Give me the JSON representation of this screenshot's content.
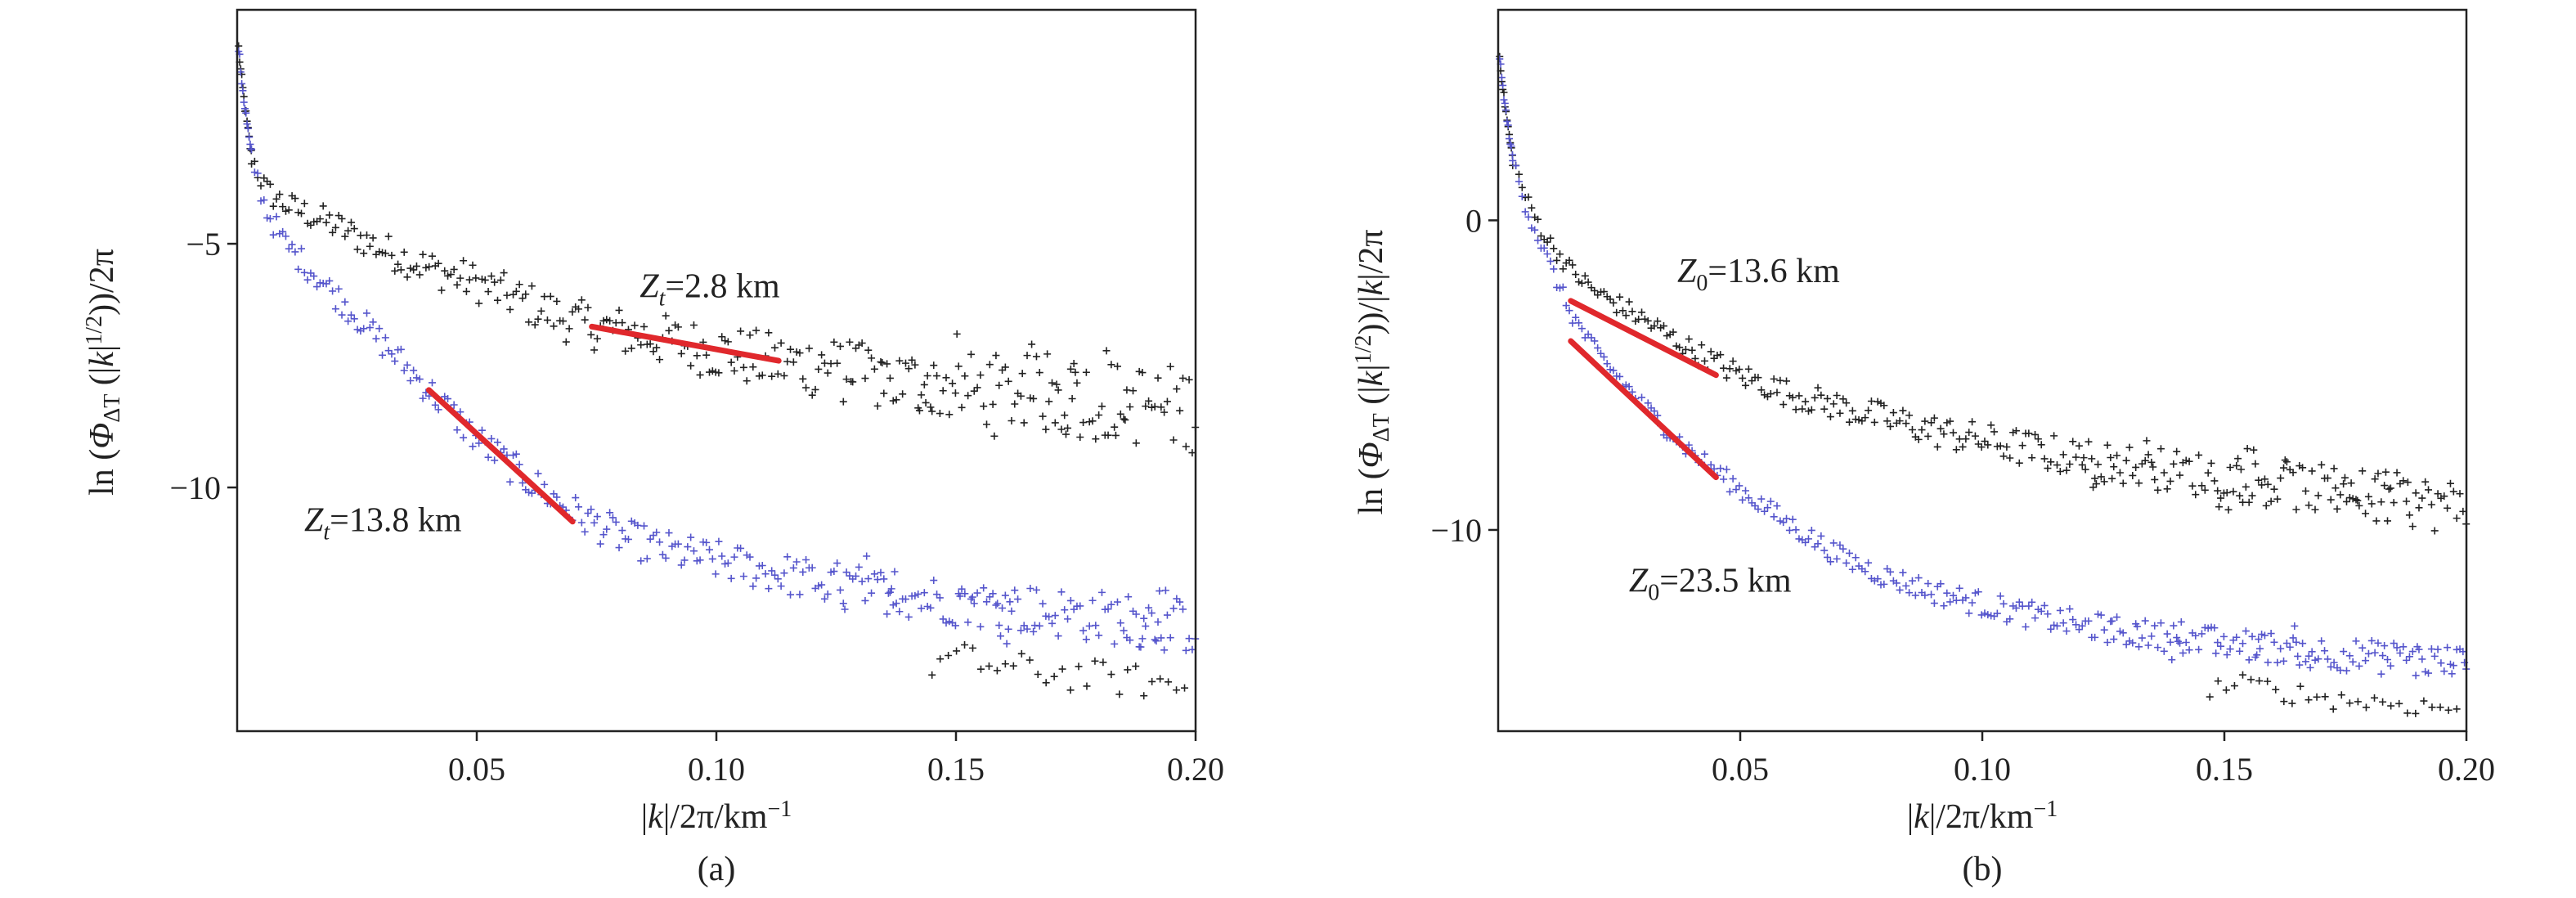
{
  "chart_data": [
    {
      "panel": "(a)",
      "type": "scatter",
      "xlabel": "|k|/2π/km⁻¹",
      "ylabel": "ln (Φ_ΔT (|k|^(1/2)))/2π",
      "xlim": [
        0,
        0.2
      ],
      "ylim": [
        -15,
        -0.2
      ],
      "xticks": [
        0.05,
        0.1,
        0.15,
        0.2
      ],
      "xtick_labels": [
        "0.05",
        "0.10",
        "0.15",
        "0.20"
      ],
      "yticks": [
        -5,
        -10
      ],
      "ytick_labels": [
        "−5",
        "−10"
      ],
      "series": [
        {
          "name": "upper (black)",
          "color": "#222222",
          "start_y": -0.5,
          "points": [
            [
              0.003,
              -3.2
            ],
            [
              0.006,
              -3.9
            ],
            [
              0.01,
              -4.2
            ],
            [
              0.02,
              -4.6
            ],
            [
              0.03,
              -5.1
            ],
            [
              0.04,
              -5.5
            ],
            [
              0.05,
              -5.8
            ],
            [
              0.06,
              -6.2
            ],
            [
              0.07,
              -6.6
            ],
            [
              0.08,
              -6.8
            ],
            [
              0.09,
              -7.0
            ],
            [
              0.1,
              -7.2
            ],
            [
              0.11,
              -7.4
            ],
            [
              0.12,
              -7.5
            ],
            [
              0.13,
              -7.7
            ],
            [
              0.14,
              -7.85
            ],
            [
              0.15,
              -7.95
            ],
            [
              0.16,
              -8.05
            ],
            [
              0.17,
              -8.1
            ],
            [
              0.18,
              -8.2
            ],
            [
              0.19,
              -8.3
            ],
            [
              0.2,
              -8.4
            ]
          ]
        },
        {
          "name": "lower (blue)",
          "color": "#5555cc",
          "start_y": -0.5,
          "points": [
            [
              0.003,
              -3.2
            ],
            [
              0.006,
              -4.3
            ],
            [
              0.01,
              -5.0
            ],
            [
              0.02,
              -6.0
            ],
            [
              0.03,
              -7.0
            ],
            [
              0.04,
              -8.0
            ],
            [
              0.05,
              -9.0
            ],
            [
              0.06,
              -9.8
            ],
            [
              0.07,
              -10.5
            ],
            [
              0.08,
              -11.0
            ],
            [
              0.09,
              -11.3
            ],
            [
              0.1,
              -11.5
            ],
            [
              0.11,
              -11.7
            ],
            [
              0.12,
              -11.9
            ],
            [
              0.13,
              -12.05
            ],
            [
              0.14,
              -12.2
            ],
            [
              0.15,
              -12.35
            ],
            [
              0.16,
              -12.45
            ],
            [
              0.17,
              -12.55
            ],
            [
              0.18,
              -12.65
            ],
            [
              0.19,
              -12.75
            ],
            [
              0.2,
              -12.85
            ]
          ]
        },
        {
          "name": "outlier segment",
          "color": "#222222",
          "points": [
            [
              0.145,
              -13.6
            ],
            [
              0.15,
              -13.5
            ],
            [
              0.16,
              -13.7
            ],
            [
              0.17,
              -13.8
            ],
            [
              0.18,
              -13.9
            ],
            [
              0.19,
              -14.0
            ],
            [
              0.199,
              -14.1
            ]
          ]
        }
      ],
      "fits": [
        {
          "label": "Z_t=13.8 km",
          "x": [
            0.04,
            0.07
          ],
          "y": [
            -8.0,
            -10.7
          ],
          "color": "#e0282c"
        },
        {
          "label": "Z_t=2.8 km",
          "x": [
            0.074,
            0.113
          ],
          "y": [
            -6.7,
            -7.4
          ],
          "color": "#e0282c"
        }
      ],
      "annotations": [
        {
          "main": "Z",
          "sub": "t",
          "rest": "=2.8 km",
          "x": 0.084,
          "y": -6.1
        },
        {
          "main": "Z",
          "sub": "t",
          "rest": "=13.8 km",
          "x": 0.014,
          "y": -10.9
        }
      ]
    },
    {
      "panel": "(b)",
      "type": "scatter",
      "xlabel": "|k|/2π/km⁻¹",
      "ylabel": "ln (Φ_ΔT (|k|^(1/2)))/|k|/2π",
      "xlim": [
        0,
        0.2
      ],
      "ylim": [
        -16.5,
        6.8
      ],
      "xticks": [
        0.05,
        0.1,
        0.15,
        0.2
      ],
      "xtick_labels": [
        "0.05",
        "0.10",
        "0.15",
        "0.20"
      ],
      "yticks": [
        0,
        -10
      ],
      "ytick_labels": [
        "0",
        "−10"
      ],
      "series": [
        {
          "name": "upper (black)",
          "color": "#222222",
          "start_y": 6.0,
          "points": [
            [
              0.003,
              2.0
            ],
            [
              0.006,
              0.6
            ],
            [
              0.01,
              -0.6
            ],
            [
              0.015,
              -1.6
            ],
            [
              0.02,
              -2.3
            ],
            [
              0.03,
              -3.2
            ],
            [
              0.04,
              -4.2
            ],
            [
              0.05,
              -5.0
            ],
            [
              0.06,
              -5.6
            ],
            [
              0.07,
              -6.0
            ],
            [
              0.08,
              -6.4
            ],
            [
              0.09,
              -6.8
            ],
            [
              0.1,
              -7.1
            ],
            [
              0.11,
              -7.4
            ],
            [
              0.12,
              -7.7
            ],
            [
              0.13,
              -7.9
            ],
            [
              0.14,
              -8.1
            ],
            [
              0.15,
              -8.3
            ],
            [
              0.16,
              -8.5
            ],
            [
              0.17,
              -8.7
            ],
            [
              0.18,
              -8.9
            ],
            [
              0.19,
              -9.1
            ],
            [
              0.2,
              -9.3
            ]
          ]
        },
        {
          "name": "lower (blue)",
          "color": "#5555cc",
          "start_y": 6.0,
          "points": [
            [
              0.003,
              2.0
            ],
            [
              0.006,
              0.3
            ],
            [
              0.01,
              -1.2
            ],
            [
              0.015,
              -3.0
            ],
            [
              0.02,
              -4.2
            ],
            [
              0.03,
              -6.0
            ],
            [
              0.04,
              -7.5
            ],
            [
              0.05,
              -8.7
            ],
            [
              0.06,
              -9.8
            ],
            [
              0.07,
              -10.8
            ],
            [
              0.08,
              -11.5
            ],
            [
              0.09,
              -12.0
            ],
            [
              0.1,
              -12.4
            ],
            [
              0.11,
              -12.75
            ],
            [
              0.12,
              -13.05
            ],
            [
              0.13,
              -13.3
            ],
            [
              0.14,
              -13.5
            ],
            [
              0.15,
              -13.65
            ],
            [
              0.16,
              -13.8
            ],
            [
              0.17,
              -13.95
            ],
            [
              0.18,
              -14.1
            ],
            [
              0.19,
              -14.2
            ],
            [
              0.2,
              -14.3
            ]
          ]
        },
        {
          "name": "outlier segment",
          "color": "#222222",
          "points": [
            [
              0.147,
              -15.1
            ],
            [
              0.155,
              -15.0
            ],
            [
              0.165,
              -15.3
            ],
            [
              0.175,
              -15.5
            ],
            [
              0.185,
              -15.6
            ],
            [
              0.199,
              -15.8
            ]
          ]
        }
      ],
      "fits": [
        {
          "label": "Z0=13.6 km",
          "x": [
            0.015,
            0.045
          ],
          "y": [
            -2.6,
            -5.0
          ],
          "color": "#e0282c"
        },
        {
          "label": "Z0=23.5 km",
          "x": [
            0.015,
            0.045
          ],
          "y": [
            -3.9,
            -8.3
          ],
          "color": "#e0282c"
        }
      ],
      "annotations": [
        {
          "main": "Z",
          "sub": "0",
          "rest": "=13.6 km",
          "x": 0.037,
          "y": -2.0
        },
        {
          "main": "Z",
          "sub": "0",
          "rest": "=23.5 km",
          "x": 0.027,
          "y": -12.0
        }
      ]
    }
  ]
}
